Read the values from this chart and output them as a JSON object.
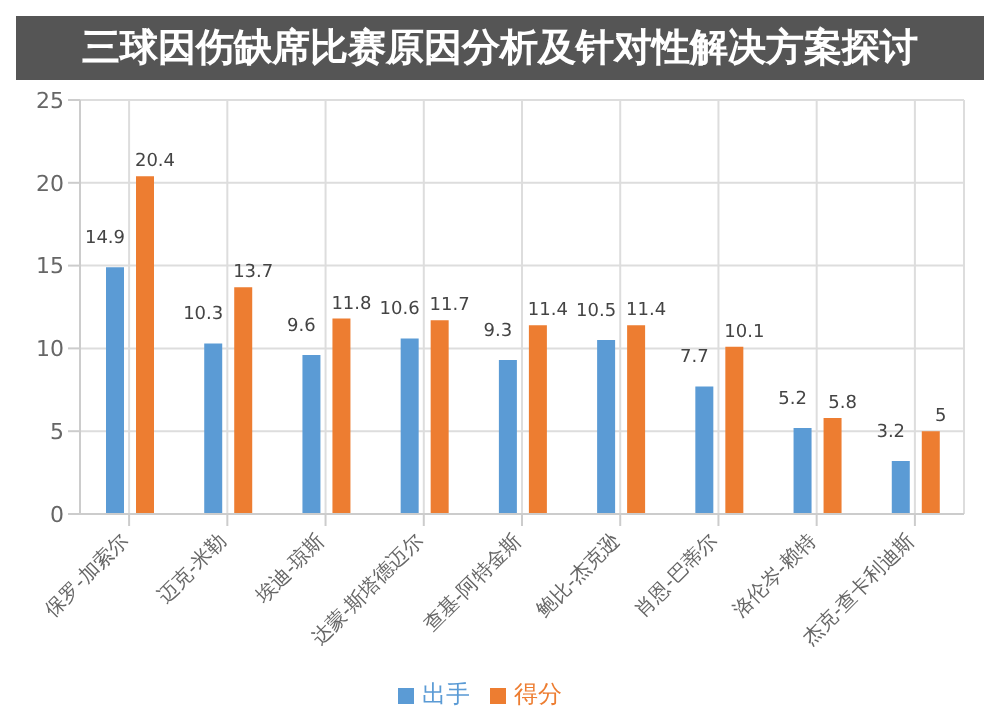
{
  "chart_data": {
    "type": "bar",
    "title": "三球因伤缺席比赛原因分析及针对性解决方案探讨",
    "categories": [
      "保罗-加索尔",
      "迈克-米勒",
      "埃迪-琼斯",
      "达蒙-斯塔德迈尔",
      "查基-阿特金斯",
      "鲍比-杰克逊",
      "肖恩-巴蒂尔",
      "洛伦岑-赖特",
      "杰克-查卡利迪斯"
    ],
    "series": [
      {
        "name": "出手",
        "color": "#5b9bd5",
        "values": [
          14.9,
          10.3,
          9.6,
          10.6,
          9.3,
          10.5,
          7.7,
          5.2,
          3.2
        ]
      },
      {
        "name": "得分",
        "color": "#ed7d31",
        "values": [
          20.4,
          13.7,
          11.8,
          11.7,
          11.4,
          11.4,
          10.1,
          5.8,
          5
        ]
      }
    ],
    "ylim": [
      0,
      25
    ],
    "yticks": [
      0,
      5,
      10,
      15,
      20,
      25
    ],
    "grid": true,
    "legend": "bottom",
    "data_labels": true
  }
}
